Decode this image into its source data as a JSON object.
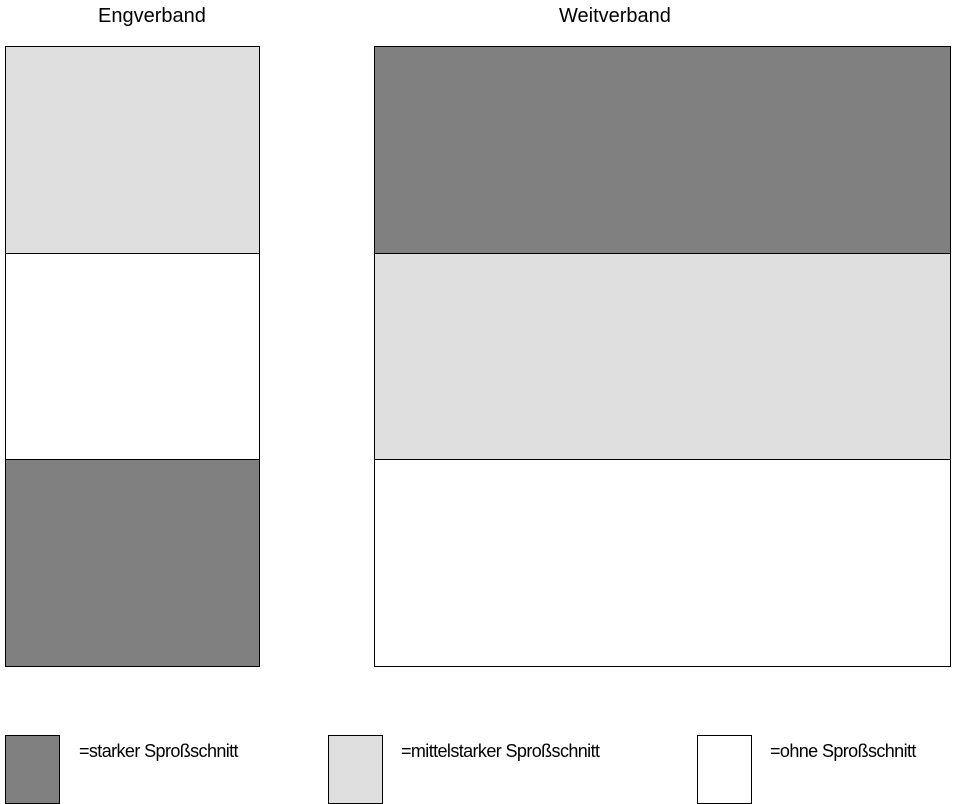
{
  "titles": {
    "eng": "Engverband",
    "weit": "Weitverband"
  },
  "colors": {
    "starker": "#808080",
    "mittelstarker": "#dfdfdf",
    "ohne": "#ffffff"
  },
  "engverband": {
    "blocks": [
      "mittelstarker",
      "ohne",
      "starker"
    ]
  },
  "weitverband": {
    "blocks": [
      "starker",
      "mittelstarker",
      "ohne"
    ]
  },
  "legend": [
    {
      "key": "starker",
      "label": "=starker Sproßschnitt"
    },
    {
      "key": "mittelstarker",
      "label": "=mittelstarker Sproßschnitt"
    },
    {
      "key": "ohne",
      "label": "=ohne Sproßschnitt"
    }
  ]
}
